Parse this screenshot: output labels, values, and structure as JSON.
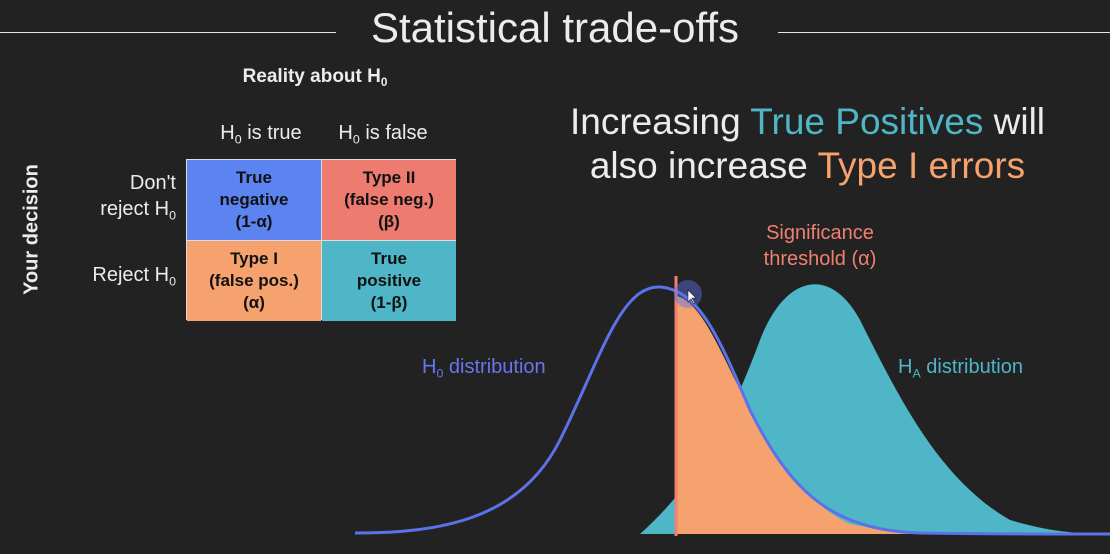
{
  "title": "Statistical trade-offs",
  "table": {
    "reality_label": "Reality about H",
    "reality_sub": "0",
    "your_decision": "Your decision",
    "col_headers": [
      {
        "main": "H",
        "sub": "0",
        "rest": " is true"
      },
      {
        "main": "H",
        "sub": "0",
        "rest": " is false"
      }
    ],
    "row_headers": [
      {
        "line1": "Don't",
        "line2": "reject H",
        "sub": "0"
      },
      {
        "line1": "",
        "line2": "Reject H",
        "sub": "0"
      }
    ],
    "cells": [
      {
        "lines": [
          "True",
          "negative",
          "(1-α)"
        ],
        "color": "#5b84f0"
      },
      {
        "lines": [
          "Type II",
          "(false neg.)",
          "(β)"
        ],
        "color": "#ee7b6f"
      },
      {
        "lines": [
          "Type I",
          "(false pos.)",
          "(α)"
        ],
        "color": "#f5a26e"
      },
      {
        "lines": [
          "True",
          "positive",
          "(1-β)"
        ],
        "color": "#4fb6c8"
      }
    ]
  },
  "headline": {
    "p1": "Increasing ",
    "p2": "True Positives",
    "p3": " will",
    "p4": "also increase ",
    "p5": "Type I errors",
    "color_tp": "#4fb6c8",
    "color_type1": "#f5a26e"
  },
  "plot": {
    "significance_line1": "Significance",
    "significance_line2": "threshold (α)",
    "h0_main": "H",
    "h0_sub": "0",
    "h0_rest": " distribution",
    "ha_main": "H",
    "ha_sub": "A",
    "ha_rest": " distribution",
    "colors": {
      "h0": "#5b72e8",
      "ha": "#4fb6c8",
      "type1_area": "#f5a26e",
      "threshold": "#f08070"
    }
  }
}
